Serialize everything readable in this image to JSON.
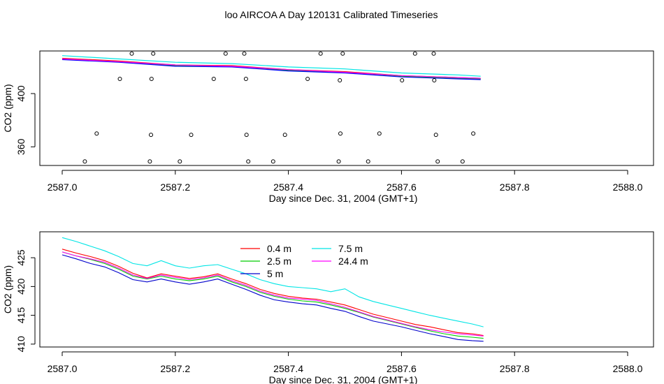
{
  "title": "loo AIRCOA A  Day 120131  Calibrated Timeseries",
  "chart_data": [
    {
      "type": "scatter",
      "xlabel": "Day since Dec. 31, 2004 (GMT+1)",
      "ylabel": "CO2 (ppm)",
      "xlim": [
        2587.0,
        2588.0
      ],
      "ylim": [
        346,
        432
      ],
      "x_ticks": [
        "2587.0",
        "2587.2",
        "2587.4",
        "2587.6",
        "2587.8",
        "2588.0"
      ],
      "y_ticks": [
        "360",
        "400"
      ],
      "y_tick_values": [
        360,
        400
      ],
      "marker_style": "open circle",
      "series_colors": [
        "#ff0000",
        "#00cc00",
        "#0000ff",
        "#00e5e5",
        "#ff00ff"
      ],
      "line_series": [
        {
          "x": [
            2587.0,
            2587.1,
            2587.2,
            2587.3,
            2587.4,
            2587.5,
            2587.6,
            2587.7,
            2587.74
          ],
          "values": [
            426.5,
            424.5,
            421.5,
            421.0,
            418.0,
            416.5,
            413.5,
            412.0,
            411.5
          ]
        },
        {
          "x": [
            2587.0,
            2587.1,
            2587.2,
            2587.3,
            2587.4,
            2587.5,
            2587.6,
            2587.7,
            2587.74
          ],
          "values": [
            426.0,
            424.0,
            421.0,
            420.5,
            417.5,
            416.0,
            413.0,
            411.5,
            411.0
          ]
        },
        {
          "x": [
            2587.0,
            2587.1,
            2587.2,
            2587.3,
            2587.4,
            2587.5,
            2587.6,
            2587.7,
            2587.74
          ],
          "values": [
            425.5,
            423.5,
            420.5,
            420.0,
            417.0,
            415.5,
            412.5,
            411.0,
            410.5
          ]
        },
        {
          "x": [
            2587.0,
            2587.1,
            2587.2,
            2587.3,
            2587.4,
            2587.5,
            2587.6,
            2587.7,
            2587.74
          ],
          "values": [
            428.5,
            426.0,
            423.5,
            422.5,
            420.0,
            418.5,
            415.5,
            414.0,
            413.0
          ]
        },
        {
          "x": [
            2587.0,
            2587.1,
            2587.2,
            2587.3,
            2587.4,
            2587.5,
            2587.6,
            2587.7,
            2587.74
          ],
          "values": [
            426.0,
            424.0,
            421.5,
            420.5,
            418.0,
            416.0,
            413.5,
            412.0,
            411.5
          ]
        }
      ],
      "points": [
        {
          "x": 2587.123,
          "y": 430
        },
        {
          "x": 2587.161,
          "y": 430
        },
        {
          "x": 2587.289,
          "y": 430
        },
        {
          "x": 2587.322,
          "y": 430
        },
        {
          "x": 2587.457,
          "y": 430
        },
        {
          "x": 2587.496,
          "y": 430
        },
        {
          "x": 2587.624,
          "y": 430
        },
        {
          "x": 2587.657,
          "y": 430
        },
        {
          "x": 2587.102,
          "y": 411
        },
        {
          "x": 2587.158,
          "y": 411
        },
        {
          "x": 2587.268,
          "y": 411
        },
        {
          "x": 2587.325,
          "y": 411
        },
        {
          "x": 2587.434,
          "y": 411
        },
        {
          "x": 2587.491,
          "y": 410
        },
        {
          "x": 2587.601,
          "y": 410
        },
        {
          "x": 2587.658,
          "y": 410
        },
        {
          "x": 2587.061,
          "y": 370
        },
        {
          "x": 2587.157,
          "y": 369
        },
        {
          "x": 2587.228,
          "y": 369
        },
        {
          "x": 2587.326,
          "y": 369
        },
        {
          "x": 2587.394,
          "y": 369
        },
        {
          "x": 2587.492,
          "y": 370
        },
        {
          "x": 2587.561,
          "y": 370
        },
        {
          "x": 2587.661,
          "y": 369
        },
        {
          "x": 2587.727,
          "y": 370
        },
        {
          "x": 2587.04,
          "y": 349
        },
        {
          "x": 2587.155,
          "y": 349
        },
        {
          "x": 2587.208,
          "y": 349
        },
        {
          "x": 2587.329,
          "y": 349
        },
        {
          "x": 2587.373,
          "y": 349
        },
        {
          "x": 2587.489,
          "y": 349
        },
        {
          "x": 2587.541,
          "y": 349
        },
        {
          "x": 2587.664,
          "y": 349
        },
        {
          "x": 2587.708,
          "y": 349
        }
      ]
    },
    {
      "type": "line",
      "xlabel": "Day since Dec. 31, 2004 (GMT+1)",
      "ylabel": "CO2 (ppm)",
      "xlim": [
        2587.0,
        2588.0
      ],
      "ylim": [
        409.5,
        429.5
      ],
      "x_ticks": [
        "2587.0",
        "2587.2",
        "2587.4",
        "2587.6",
        "2587.8",
        "2588.0"
      ],
      "y_ticks": [
        "410",
        "415",
        "420",
        "425"
      ],
      "y_tick_values": [
        410,
        415,
        420,
        425
      ],
      "legend_placement": "top-center",
      "x": [
        2587.0,
        2587.025,
        2587.05,
        2587.075,
        2587.1,
        2587.125,
        2587.15,
        2587.175,
        2587.2,
        2587.225,
        2587.25,
        2587.275,
        2587.3,
        2587.325,
        2587.35,
        2587.375,
        2587.4,
        2587.425,
        2587.45,
        2587.475,
        2587.5,
        2587.525,
        2587.55,
        2587.575,
        2587.6,
        2587.625,
        2587.65,
        2587.675,
        2587.7,
        2587.725,
        2587.745
      ],
      "series": [
        {
          "name": "0.4 m",
          "color": "#ff0000",
          "values": [
            426.5,
            425.8,
            425.2,
            424.5,
            423.5,
            422.3,
            421.5,
            422.2,
            421.8,
            421.4,
            421.7,
            422.2,
            421.3,
            420.5,
            419.5,
            418.8,
            418.3,
            418.0,
            417.8,
            417.3,
            416.8,
            416.0,
            415.2,
            414.6,
            414.0,
            413.4,
            413.0,
            412.5,
            412.0,
            411.8,
            411.5
          ]
        },
        {
          "name": "2.5 m",
          "color": "#00cc00",
          "values": [
            426.0,
            425.3,
            424.7,
            424.0,
            423.0,
            421.8,
            421.3,
            421.8,
            421.3,
            421.0,
            421.3,
            421.8,
            420.8,
            420.0,
            419.0,
            418.3,
            417.8,
            417.5,
            417.3,
            416.8,
            416.2,
            415.5,
            414.7,
            414.1,
            413.5,
            412.9,
            412.3,
            411.8,
            411.4,
            411.2,
            411.0
          ]
        },
        {
          "name": "5 m",
          "color": "#0000cc",
          "values": [
            425.5,
            424.8,
            424.0,
            423.4,
            422.4,
            421.2,
            420.8,
            421.3,
            420.8,
            420.4,
            420.8,
            421.3,
            420.4,
            419.5,
            418.5,
            417.7,
            417.3,
            417.0,
            416.8,
            416.2,
            415.7,
            414.8,
            414.0,
            413.5,
            413.0,
            412.4,
            411.8,
            411.3,
            410.8,
            410.6,
            410.5
          ]
        },
        {
          "name": "7.5 m",
          "color": "#00e5e5",
          "values": [
            428.5,
            427.8,
            427.0,
            426.2,
            425.2,
            424.0,
            423.6,
            424.5,
            423.6,
            423.2,
            423.6,
            423.8,
            423.0,
            422.2,
            421.2,
            420.5,
            420.0,
            419.8,
            419.6,
            419.1,
            419.6,
            418.2,
            417.4,
            416.8,
            416.2,
            415.6,
            415.0,
            414.5,
            414.0,
            413.5,
            413.0
          ]
        },
        {
          "name": "24.4 m",
          "color": "#ff00ff",
          "values": [
            426.0,
            425.3,
            424.8,
            424.2,
            423.2,
            422.0,
            421.4,
            422.0,
            421.6,
            421.2,
            421.5,
            422.0,
            421.0,
            420.2,
            419.2,
            418.5,
            418.0,
            417.8,
            417.6,
            417.0,
            416.4,
            415.6,
            414.8,
            414.2,
            413.6,
            413.0,
            412.5,
            412.1,
            411.8,
            411.6,
            411.4
          ]
        }
      ]
    }
  ]
}
